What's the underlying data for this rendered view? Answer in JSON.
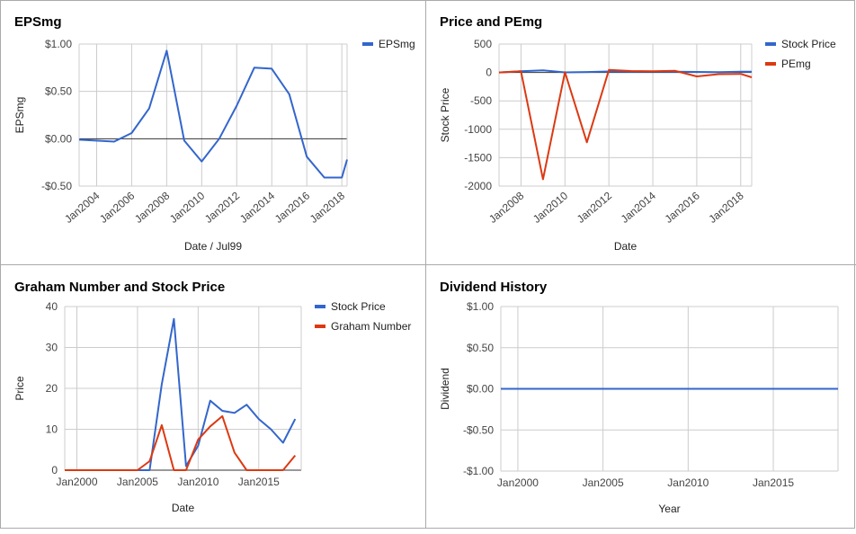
{
  "colors": {
    "blue": "#3366cc",
    "red": "#dc3912",
    "grid": "#cccccc",
    "border": "#aaaaaa"
  },
  "chart_data": [
    {
      "id": "eps",
      "type": "line",
      "title": "EPSmg",
      "xlabel": "Date / Jul99",
      "ylabel": "EPSmg",
      "xlim": [
        2003.0,
        2018.3
      ],
      "ylim": [
        -0.5,
        1.0
      ],
      "yticks": [
        1.0,
        0.5,
        0.0,
        -0.5
      ],
      "yticklabels": [
        "$1.00",
        "$0.50",
        "$0.00",
        "-$0.50"
      ],
      "xticks": [
        2004,
        2006,
        2008,
        2010,
        2012,
        2014,
        2016,
        2018
      ],
      "xticklabels": [
        "Jan2004",
        "Jan2006",
        "Jan2008",
        "Jan2010",
        "Jan2012",
        "Jan2014",
        "Jan2016",
        "Jan2018"
      ],
      "xtick_rotate": true,
      "legend": "right",
      "series": [
        {
          "name": "EPSmg",
          "color": "#3366cc",
          "x": [
            2003.0,
            2005.0,
            2006.0,
            2007.0,
            2008.0,
            2009.0,
            2010.0,
            2011.0,
            2012.0,
            2013.0,
            2014.0,
            2015.0,
            2016.0,
            2017.0,
            2018.0,
            2018.3
          ],
          "y": [
            -0.01,
            -0.03,
            0.06,
            0.32,
            0.93,
            -0.02,
            -0.24,
            0.0,
            0.35,
            0.75,
            0.74,
            0.47,
            -0.19,
            -0.41,
            -0.41,
            -0.22
          ]
        }
      ]
    },
    {
      "id": "pe",
      "type": "line",
      "title": "Price and PEmg",
      "xlabel": "Date",
      "ylabel": "Stock Price",
      "xlim": [
        2007.0,
        2018.5
      ],
      "ylim": [
        -2000,
        500
      ],
      "yticks": [
        500,
        0,
        -500,
        -1000,
        -1500,
        -2000
      ],
      "yticklabels": [
        "500",
        "0",
        "-500",
        "-1000",
        "-1500",
        "-2000"
      ],
      "xticks": [
        2008,
        2010,
        2012,
        2014,
        2016,
        2018
      ],
      "xticklabels": [
        "Jan2008",
        "Jan2010",
        "Jan2012",
        "Jan2014",
        "Jan2016",
        "Jan2018"
      ],
      "xtick_rotate": true,
      "legend": "right",
      "series": [
        {
          "name": "Stock Price",
          "color": "#3366cc",
          "x": [
            2007.0,
            2008.0,
            2009.0,
            2010.0,
            2011.0,
            2012.0,
            2013.0,
            2014.0,
            2015.0,
            2016.0,
            2017.0,
            2018.0,
            2018.5
          ],
          "y": [
            0,
            20,
            37,
            1,
            8,
            17,
            14,
            16,
            12,
            10,
            7,
            12,
            12
          ]
        },
        {
          "name": "PEmg",
          "color": "#dc3912",
          "x": [
            2007.0,
            2008.0,
            2009.0,
            2010.0,
            2011.0,
            2012.0,
            2013.0,
            2014.0,
            2015.0,
            2016.0,
            2017.0,
            2018.0,
            2018.5
          ],
          "y": [
            0,
            20,
            -1880,
            5,
            -1230,
            45,
            25,
            22,
            30,
            -70,
            -30,
            -25,
            -85
          ]
        }
      ]
    },
    {
      "id": "graham",
      "type": "line",
      "title": "Graham Number and Stock Price",
      "xlabel": "Date",
      "ylabel": "Price",
      "xlim": [
        1999.0,
        2018.5
      ],
      "ylim": [
        0,
        40
      ],
      "yticks": [
        40,
        30,
        20,
        10,
        0
      ],
      "yticklabels": [
        "40",
        "30",
        "20",
        "10",
        "0"
      ],
      "xticks": [
        2000,
        2005,
        2010,
        2015
      ],
      "xticklabels": [
        "Jan2000",
        "Jan2005",
        "Jan2010",
        "Jan2015"
      ],
      "xtick_rotate": false,
      "legend": "right",
      "series": [
        {
          "name": "Stock Price",
          "color": "#3366cc",
          "x": [
            1999.0,
            2000.0,
            2001.0,
            2002.0,
            2003.0,
            2004.0,
            2005.0,
            2006.0,
            2007.0,
            2008.0,
            2009.0,
            2010.0,
            2011.0,
            2012.0,
            2013.0,
            2014.0,
            2015.0,
            2016.0,
            2017.0,
            2018.0
          ],
          "y": [
            0,
            0,
            0,
            0,
            0,
            0,
            0,
            0,
            21,
            37,
            1,
            6,
            17,
            14.5,
            14,
            16,
            12.5,
            10,
            6.7,
            12.5
          ]
        },
        {
          "name": "Graham Number",
          "color": "#dc3912",
          "x": [
            1999.0,
            2000.0,
            2001.0,
            2002.0,
            2003.0,
            2004.0,
            2005.0,
            2006.0,
            2007.0,
            2008.0,
            2009.0,
            2010.0,
            2011.0,
            2012.0,
            2013.0,
            2014.0,
            2015.0,
            2016.0,
            2017.0,
            2018.0
          ],
          "y": [
            0,
            0,
            0,
            0,
            0,
            0,
            0,
            2.2,
            11,
            0,
            0,
            7.5,
            10.7,
            13.2,
            4.3,
            0,
            0,
            0,
            0,
            3.6
          ]
        }
      ]
    },
    {
      "id": "div",
      "type": "line",
      "title": "Dividend History",
      "xlabel": "Year",
      "ylabel": "Dividend",
      "xlim": [
        1999.0,
        2018.8
      ],
      "ylim": [
        -1.0,
        1.0
      ],
      "yticks": [
        1.0,
        0.5,
        0.0,
        -0.5,
        -1.0
      ],
      "yticklabels": [
        "$1.00",
        "$0.50",
        "$0.00",
        "-$0.50",
        "-$1.00"
      ],
      "xticks": [
        2000,
        2005,
        2010,
        2015
      ],
      "xticklabels": [
        "Jan2000",
        "Jan2005",
        "Jan2010",
        "Jan2015"
      ],
      "xtick_rotate": false,
      "legend": "none",
      "series": [
        {
          "name": "Dividend",
          "color": "#3366cc",
          "x": [
            1999.0,
            2018.8
          ],
          "y": [
            0.0,
            0.0
          ]
        }
      ]
    }
  ]
}
